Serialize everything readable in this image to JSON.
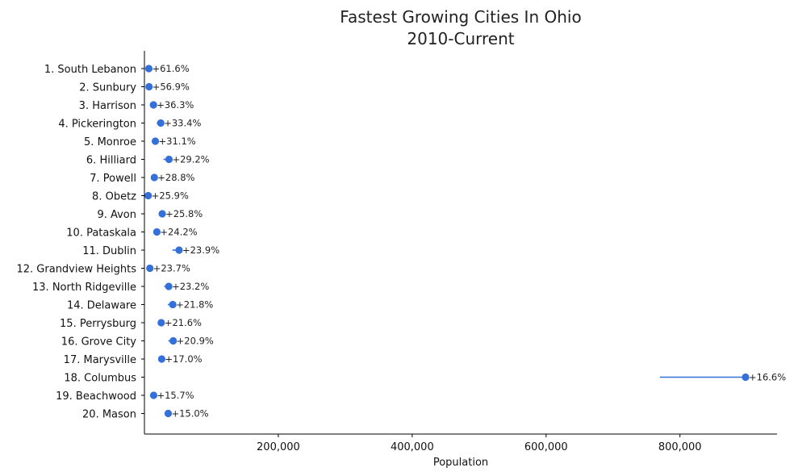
{
  "chart_data": {
    "type": "dumbbell",
    "title": "Fastest Growing Cities In Ohio",
    "subtitle": "2010-Current",
    "xlabel": "Population",
    "ylabel": "",
    "xlim": [
      0,
      945000
    ],
    "x_ticks": [
      200000,
      400000,
      600000,
      800000
    ],
    "x_tick_labels": [
      "200,000",
      "400,000",
      "600,000",
      "800,000"
    ],
    "grid": false,
    "legend": "none",
    "color": "#3370d9",
    "rows": [
      {
        "label": "1. South Lebanon",
        "start": 4100,
        "end": 6600,
        "growth": "+61.6%"
      },
      {
        "label": "2. Sunbury",
        "start": 4400,
        "end": 6900,
        "growth": "+56.9%"
      },
      {
        "label": "3. Harrison",
        "start": 9900,
        "end": 13500,
        "growth": "+36.3%"
      },
      {
        "label": "4. Pickerington",
        "start": 18300,
        "end": 24400,
        "growth": "+33.4%"
      },
      {
        "label": "5. Monroe",
        "start": 12400,
        "end": 16300,
        "growth": "+31.1%"
      },
      {
        "label": "6. Hilliard",
        "start": 28400,
        "end": 36700,
        "growth": "+29.2%"
      },
      {
        "label": "7. Powell",
        "start": 11500,
        "end": 14800,
        "growth": "+28.8%"
      },
      {
        "label": "8. Obetz",
        "start": 4500,
        "end": 5700,
        "growth": "+25.9%"
      },
      {
        "label": "9. Avon",
        "start": 21200,
        "end": 26600,
        "growth": "+25.8%"
      },
      {
        "label": "10. Pataskala",
        "start": 15000,
        "end": 18600,
        "growth": "+24.2%"
      },
      {
        "label": "11. Dublin",
        "start": 41800,
        "end": 51800,
        "growth": "+23.9%"
      },
      {
        "label": "12. Grandview Heights",
        "start": 6500,
        "end": 8100,
        "growth": "+23.7%"
      },
      {
        "label": "13. North Ridgeville",
        "start": 29500,
        "end": 36300,
        "growth": "+23.2%"
      },
      {
        "label": "14. Delaware",
        "start": 34800,
        "end": 42400,
        "growth": "+21.8%"
      },
      {
        "label": "15. Perrysburg",
        "start": 20600,
        "end": 25100,
        "growth": "+21.6%"
      },
      {
        "label": "16. Grove City",
        "start": 35600,
        "end": 43000,
        "growth": "+20.9%"
      },
      {
        "label": "17. Marysville",
        "start": 22100,
        "end": 25800,
        "growth": "+17.0%"
      },
      {
        "label": "18. Columbus",
        "start": 770000,
        "end": 898000,
        "growth": "+16.6%"
      },
      {
        "label": "19. Beachwood",
        "start": 11900,
        "end": 13800,
        "growth": "+15.7%"
      },
      {
        "label": "20. Mason",
        "start": 30900,
        "end": 35500,
        "growth": "+15.0%"
      }
    ]
  }
}
